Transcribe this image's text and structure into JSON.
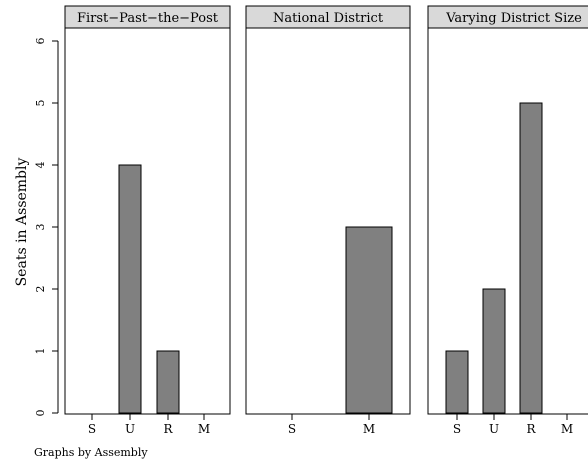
{
  "chart_data": {
    "type": "bar",
    "ylabel": "Seats in Assembly",
    "ylim": [
      0,
      6
    ],
    "yticks": [
      "0",
      "1",
      "2",
      "3",
      "4",
      "5",
      "6"
    ],
    "grid": false,
    "note": "Graphs by Assembly",
    "bar_color": "#808080",
    "panel_header_color": "#d9d9d9",
    "panels": [
      {
        "title": "First−Past−the−Post",
        "categories": [
          "S",
          "U",
          "R",
          "M"
        ],
        "values": [
          0,
          4,
          1,
          0
        ]
      },
      {
        "title": "National District",
        "categories": [
          "S",
          "M"
        ],
        "values": [
          0,
          3
        ]
      },
      {
        "title": "Varying District Size",
        "categories": [
          "S",
          "U",
          "R",
          "M"
        ],
        "values": [
          1,
          2,
          5,
          0
        ]
      }
    ]
  }
}
